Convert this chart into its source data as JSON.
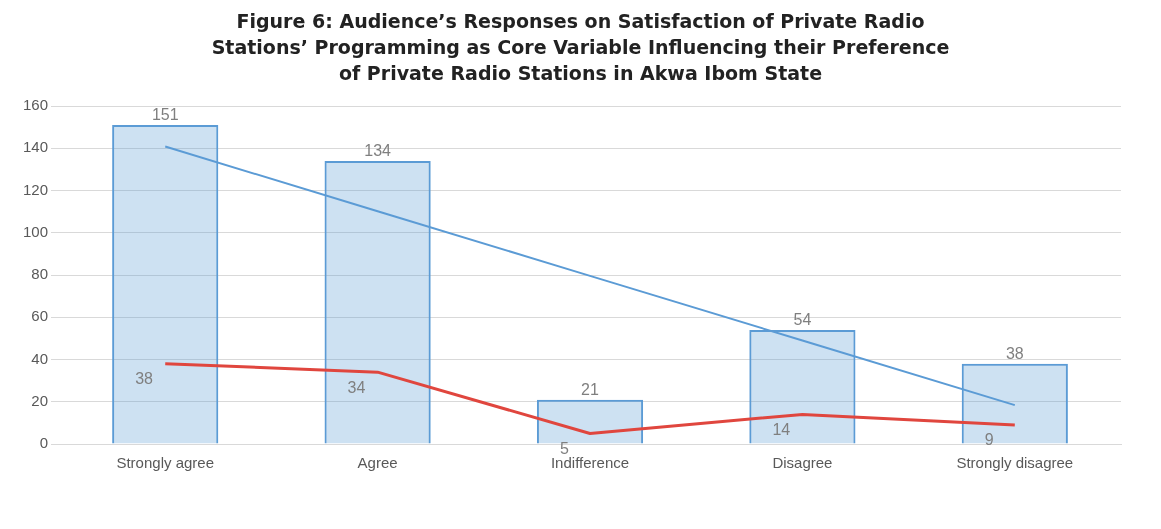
{
  "chart_data": {
    "type": "bar",
    "title": "Figure 6:   Audience’s Responses on Satisfaction of Private Radio Stations’ Programming as Core Variable Influencing their Preference of Private Radio Stations in Akwa Ibom State",
    "categories": [
      "Strongly agree",
      "Agree",
      "Indifference",
      "Disagree",
      "Strongly disagree"
    ],
    "series": [
      {
        "color": "#5b9bd5",
        "values": [
          151,
          134,
          21,
          54,
          38
        ],
        "value_labels": [
          "151",
          "134",
          "21",
          "54",
          "38"
        ]
      },
      {
        "type": "line",
        "color": "#e0463e",
        "values": [
          38,
          34,
          5,
          14,
          9
        ],
        "value_labels": [
          "38",
          "34",
          "5",
          "14",
          "9"
        ]
      },
      {
        "type": "line",
        "color": "#5b9bd5",
        "values": [
          140.8,
          110.2,
          79.6,
          49,
          18.4
        ]
      }
    ],
    "ylim": [
      0,
      160
    ],
    "yticks": [
      0,
      20,
      40,
      60,
      80,
      100,
      120,
      140,
      160
    ],
    "grid": "y",
    "legend": false,
    "marker": "none"
  }
}
